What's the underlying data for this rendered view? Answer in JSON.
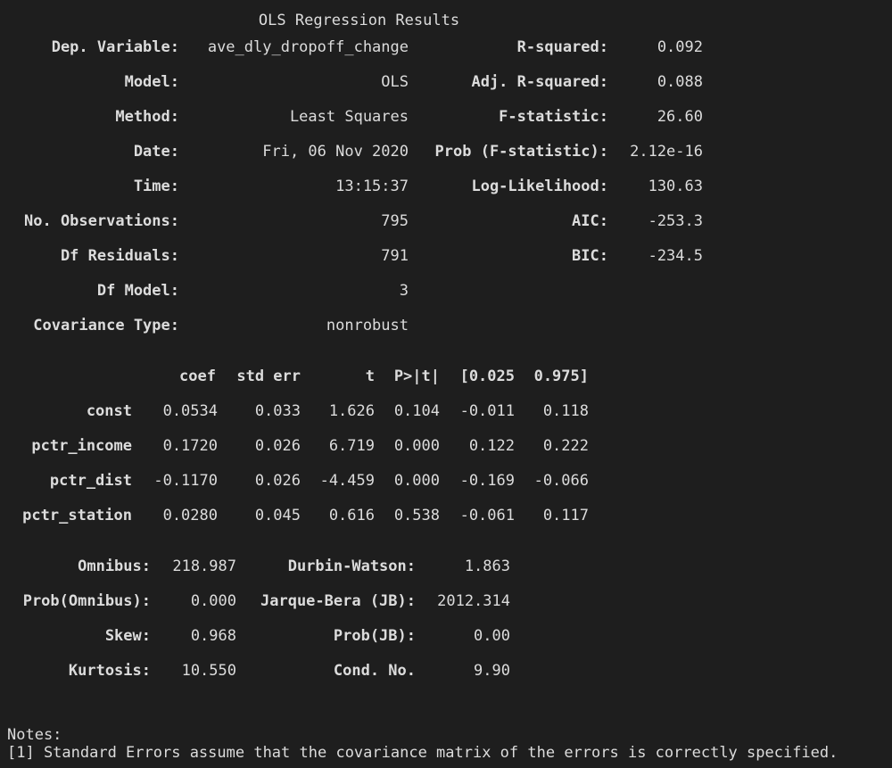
{
  "title": "OLS Regression Results",
  "summary": {
    "left": [
      {
        "label": "Dep. Variable:",
        "value": "ave_dly_dropoff_change"
      },
      {
        "label": "Model:",
        "value": "OLS"
      },
      {
        "label": "Method:",
        "value": "Least Squares"
      },
      {
        "label": "Date:",
        "value": "Fri, 06 Nov 2020"
      },
      {
        "label": "Time:",
        "value": "13:15:37"
      },
      {
        "label": "No. Observations:",
        "value": "795"
      },
      {
        "label": "Df Residuals:",
        "value": "791"
      },
      {
        "label": "Df Model:",
        "value": "3"
      },
      {
        "label": "Covariance Type:",
        "value": "nonrobust"
      }
    ],
    "right": [
      {
        "label": "R-squared:",
        "value": "0.092"
      },
      {
        "label": "Adj. R-squared:",
        "value": "0.088"
      },
      {
        "label": "F-statistic:",
        "value": "26.60"
      },
      {
        "label": "Prob (F-statistic):",
        "value": "2.12e-16"
      },
      {
        "label": "Log-Likelihood:",
        "value": "130.63"
      },
      {
        "label": "AIC:",
        "value": "-253.3"
      },
      {
        "label": "BIC:",
        "value": "-234.5"
      }
    ]
  },
  "coef_table": {
    "headers": [
      "coef",
      "std err",
      "t",
      "P>|t|",
      "[0.025",
      "0.975]"
    ],
    "rows": [
      {
        "name": "const",
        "values": [
          "0.0534",
          "0.033",
          "1.626",
          "0.104",
          "-0.011",
          "0.118"
        ]
      },
      {
        "name": "pctr_income",
        "values": [
          "0.1720",
          "0.026",
          "6.719",
          "0.000",
          "0.122",
          "0.222"
        ]
      },
      {
        "name": "pctr_dist",
        "values": [
          "-0.1170",
          "0.026",
          "-4.459",
          "0.000",
          "-0.169",
          "-0.066"
        ]
      },
      {
        "name": "pctr_station",
        "values": [
          "0.0280",
          "0.045",
          "0.616",
          "0.538",
          "-0.061",
          "0.117"
        ]
      }
    ]
  },
  "diagnostics": {
    "left": [
      {
        "label": "Omnibus:",
        "value": "218.987"
      },
      {
        "label": "Prob(Omnibus):",
        "value": "0.000"
      },
      {
        "label": "Skew:",
        "value": "0.968"
      },
      {
        "label": "Kurtosis:",
        "value": "10.550"
      }
    ],
    "right": [
      {
        "label": "Durbin-Watson:",
        "value": "1.863"
      },
      {
        "label": "Jarque-Bera (JB):",
        "value": "2012.314"
      },
      {
        "label": "Prob(JB):",
        "value": "0.00"
      },
      {
        "label": "Cond. No.",
        "value": "9.90"
      }
    ]
  },
  "notes": {
    "heading": "Notes:",
    "lines": [
      "[1] Standard Errors assume that the covariance matrix of the errors is correctly specified."
    ]
  }
}
